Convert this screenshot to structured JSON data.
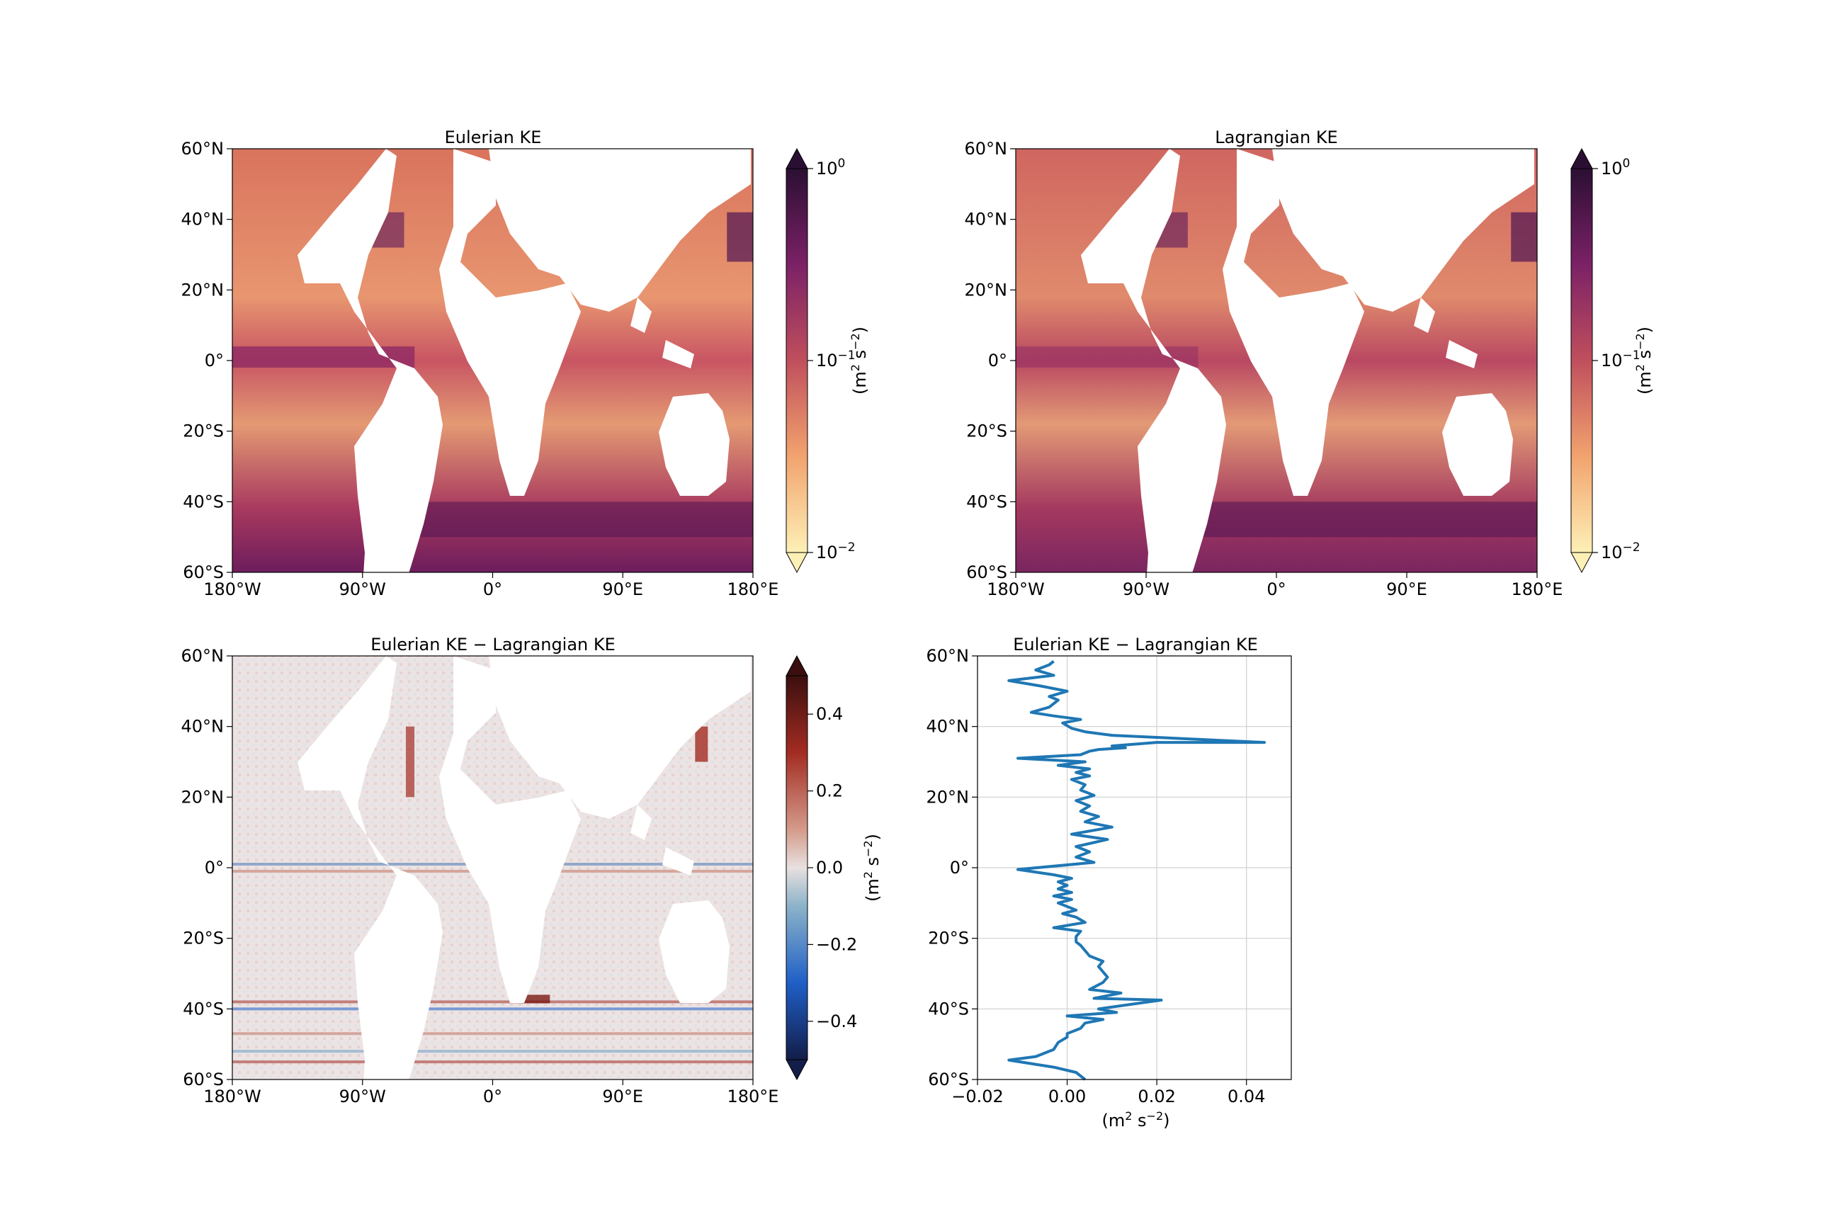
{
  "colors": {
    "ke_high": "#2b0f33",
    "ke_mid": "#c04f5d",
    "ke_low": "#fdf0b6",
    "diff_pos": "#3b0f0f",
    "diff_neg": "#131d49",
    "diff_zero": "#e8e0df",
    "profile_line": "#1f77b4",
    "grid": "#d0d0d0"
  },
  "chart_data": [
    {
      "type": "heatmap",
      "title": "Eulerian KE",
      "x_tick_labels": [
        "180°W",
        "90°W",
        "0°",
        "90°E",
        "180°E"
      ],
      "x_tick_values": [
        -180,
        -90,
        0,
        90,
        180
      ],
      "y_tick_labels": [
        "60°N",
        "40°N",
        "20°N",
        "0°",
        "20°S",
        "40°S",
        "60°S"
      ],
      "y_tick_values": [
        60,
        40,
        20,
        0,
        -20,
        -40,
        -60
      ],
      "xlim": [
        -180,
        180
      ],
      "ylim": [
        -60,
        60
      ],
      "colorbar": {
        "scale": "log",
        "range": [
          0.01,
          1
        ],
        "extend": "both",
        "tick_labels": [
          {
            "base": "10",
            "exp": "0",
            "value": 1
          },
          {
            "base": "10",
            "exp": "−1",
            "value": 0.1
          },
          {
            "base": "10",
            "exp": "−2",
            "value": 0.01
          }
        ],
        "label": {
          "pre": "(m",
          "sup1": "2",
          "mid": " s",
          "sup2": "−2",
          "post": ")"
        }
      }
    },
    {
      "type": "heatmap",
      "title": "Lagrangian KE",
      "x_tick_labels": [
        "180°W",
        "90°W",
        "0°",
        "90°E",
        "180°E"
      ],
      "x_tick_values": [
        -180,
        -90,
        0,
        90,
        180
      ],
      "y_tick_labels": [
        "60°N",
        "40°N",
        "20°N",
        "0°",
        "20°S",
        "40°S",
        "60°S"
      ],
      "y_tick_values": [
        60,
        40,
        20,
        0,
        -20,
        -40,
        -60
      ],
      "xlim": [
        -180,
        180
      ],
      "ylim": [
        -60,
        60
      ],
      "colorbar": {
        "scale": "log",
        "range": [
          0.01,
          1
        ],
        "extend": "both",
        "tick_labels": [
          {
            "base": "10",
            "exp": "0",
            "value": 1
          },
          {
            "base": "10",
            "exp": "−1",
            "value": 0.1
          },
          {
            "base": "10",
            "exp": "−2",
            "value": 0.01
          }
        ],
        "label": {
          "pre": "(m",
          "sup1": "2",
          "mid": " s",
          "sup2": "−2",
          "post": ")"
        }
      }
    },
    {
      "type": "heatmap",
      "title": "Eulerian KE − Lagrangian KE",
      "x_tick_labels": [
        "180°W",
        "90°W",
        "0°",
        "90°E",
        "180°E"
      ],
      "x_tick_values": [
        -180,
        -90,
        0,
        90,
        180
      ],
      "y_tick_labels": [
        "60°N",
        "40°N",
        "20°N",
        "0°",
        "20°S",
        "40°S",
        "60°S"
      ],
      "y_tick_values": [
        60,
        40,
        20,
        0,
        -20,
        -40,
        -60
      ],
      "xlim": [
        -180,
        180
      ],
      "ylim": [
        -60,
        60
      ],
      "colorbar": {
        "scale": "linear",
        "range": [
          -0.5,
          0.5
        ],
        "extend": "both",
        "tick_labels": [
          "0.4",
          "0.2",
          "0.0",
          "−0.2",
          "−0.4"
        ],
        "tick_values": [
          0.4,
          0.2,
          0.0,
          -0.2,
          -0.4
        ],
        "label": {
          "pre": "(m",
          "sup1": "2",
          "mid": " s",
          "sup2": "−2",
          "post": ")"
        }
      }
    },
    {
      "type": "line",
      "title": "Eulerian KE − Lagrangian KE",
      "orientation": "vertical-profile",
      "grid": true,
      "xlim": [
        -0.02,
        0.05
      ],
      "ylim": [
        -60,
        60
      ],
      "x_tick_labels": [
        "−0.02",
        "0.00",
        "0.02",
        "0.04"
      ],
      "x_tick_values": [
        -0.02,
        0.0,
        0.02,
        0.04
      ],
      "y_tick_labels": [
        "60°N",
        "40°N",
        "20°N",
        "0°",
        "20°S",
        "40°S",
        "60°S"
      ],
      "y_tick_values": [
        60,
        40,
        20,
        0,
        -20,
        -40,
        -60
      ],
      "xlabel": {
        "pre": "(m",
        "sup1": "2",
        "mid": " s",
        "sup2": "−2",
        "post": ")"
      },
      "series": [
        {
          "points": [
            [
              0.004,
              -60
            ],
            [
              0.002,
              -58
            ],
            [
              -0.003,
              -56.5
            ],
            [
              -0.013,
              -54.5
            ],
            [
              -0.007,
              -53.5
            ],
            [
              -0.003,
              -51.5
            ],
            [
              -0.002,
              -49.5
            ],
            [
              0.0,
              -48
            ],
            [
              0.0,
              -47
            ],
            [
              0.003,
              -45.5
            ],
            [
              0.004,
              -44
            ],
            [
              0.008,
              -43
            ],
            [
              0.0,
              -42
            ],
            [
              0.011,
              -41
            ],
            [
              0.007,
              -40
            ],
            [
              0.021,
              -37.5
            ],
            [
              0.006,
              -37
            ],
            [
              0.012,
              -35.5
            ],
            [
              0.005,
              -34.5
            ],
            [
              0.008,
              -32.5
            ],
            [
              0.009,
              -31
            ],
            [
              0.008,
              -29.5
            ],
            [
              0.007,
              -28
            ],
            [
              0.008,
              -26.5
            ],
            [
              0.005,
              -25
            ],
            [
              0.004,
              -23.5
            ],
            [
              0.003,
              -22
            ],
            [
              0.002,
              -21
            ],
            [
              0.002,
              -19.5
            ],
            [
              0.003,
              -18
            ],
            [
              -0.003,
              -17
            ],
            [
              0.004,
              -15.5
            ],
            [
              0.002,
              -14
            ],
            [
              -0.001,
              -13
            ],
            [
              0.002,
              -12
            ],
            [
              0.0,
              -11
            ],
            [
              -0.002,
              -10
            ],
            [
              0.001,
              -9
            ],
            [
              -0.003,
              -8
            ],
            [
              0.001,
              -7
            ],
            [
              -0.002,
              -6
            ],
            [
              0.0,
              -5
            ],
            [
              -0.002,
              -4
            ],
            [
              0.001,
              -3
            ],
            [
              -0.003,
              -2
            ],
            [
              -0.011,
              -0.5
            ],
            [
              0.006,
              1.5
            ],
            [
              0.002,
              3
            ],
            [
              0.005,
              4.5
            ],
            [
              0.002,
              6
            ],
            [
              0.009,
              8
            ],
            [
              0.001,
              9.5
            ],
            [
              0.01,
              11.5
            ],
            [
              0.004,
              13
            ],
            [
              0.007,
              14.5
            ],
            [
              0.003,
              16
            ],
            [
              0.005,
              17.5
            ],
            [
              0.002,
              19
            ],
            [
              0.006,
              20.5
            ],
            [
              0.003,
              22
            ],
            [
              0.004,
              23.5
            ],
            [
              0.001,
              25
            ],
            [
              0.005,
              26
            ],
            [
              0.002,
              27
            ],
            [
              0.005,
              28
            ],
            [
              -0.002,
              29
            ],
            [
              0.004,
              30
            ],
            [
              -0.011,
              31
            ],
            [
              0.003,
              32
            ],
            [
              0.005,
              33
            ],
            [
              0.007,
              33.5
            ],
            [
              0.013,
              34
            ],
            [
              0.01,
              34.5
            ],
            [
              0.02,
              35.5
            ],
            [
              0.044,
              35.5
            ],
            [
              0.01,
              37.5
            ],
            [
              0.004,
              38.5
            ],
            [
              0.001,
              39.5
            ],
            [
              -0.001,
              41
            ],
            [
              0.003,
              42
            ],
            [
              -0.003,
              43
            ],
            [
              -0.008,
              44
            ],
            [
              -0.004,
              45.5
            ],
            [
              -0.002,
              47.5
            ],
            [
              -0.004,
              48.5
            ],
            [
              0.0,
              50
            ],
            [
              -0.006,
              51.5
            ],
            [
              -0.013,
              53
            ],
            [
              -0.003,
              54.5
            ],
            [
              -0.007,
              56
            ],
            [
              -0.004,
              57.5
            ],
            [
              -0.003,
              58.5
            ]
          ]
        }
      ]
    }
  ]
}
